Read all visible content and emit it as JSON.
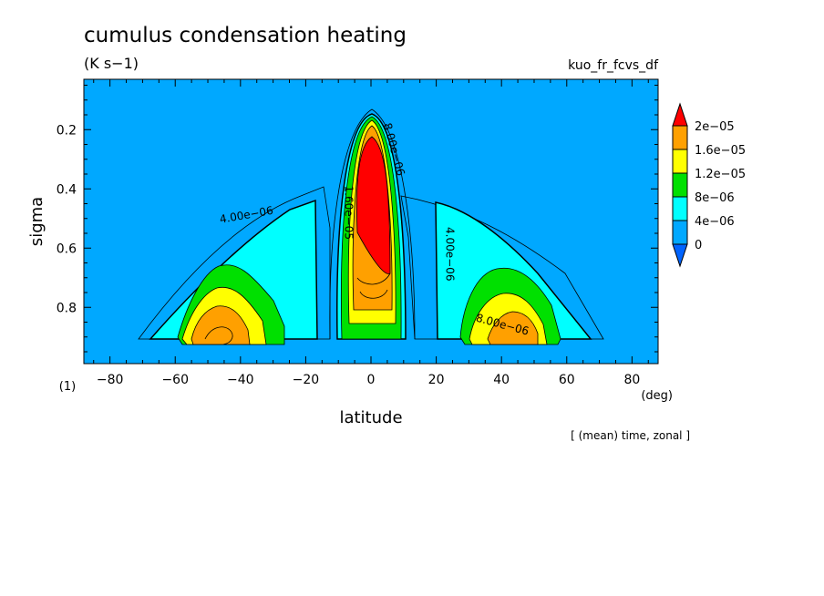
{
  "chart_data": {
    "type": "heatmap",
    "title": "cumulus condensation heating",
    "units": "(K s−1)",
    "variable": "kuo_fr_fcvs_df",
    "xlabel": "latitude",
    "xunit": "(deg)",
    "ylabel": "sigma",
    "yunit": "(1)",
    "note": "[ (mean) time, zonal ]",
    "xlim": [
      -88,
      88
    ],
    "ylim": [
      0.03,
      0.99
    ],
    "y_inverted": true,
    "xticks": [
      -80,
      -60,
      -40,
      -20,
      0,
      20,
      40,
      60,
      80
    ],
    "xtick_labels": [
      "−80",
      "−60",
      "−40",
      "−20",
      "0",
      "20",
      "40",
      "60",
      "80"
    ],
    "yticks": [
      0.2,
      0.4,
      0.6,
      0.8
    ],
    "ytick_labels": [
      "0.2",
      "0.4",
      "0.6",
      "0.8"
    ],
    "colorbar": {
      "levels": [
        0,
        4e-06,
        8e-06,
        1.2e-05,
        1.6e-05,
        2e-05
      ],
      "labels": [
        "0",
        "4e−06",
        "8e−06",
        "1.2e−05",
        "1.6e−05",
        "2e−05"
      ],
      "colors": [
        "#00a8ff",
        "#00ffff",
        "#00e000",
        "#ffff00",
        "#ffa000",
        "#ff0000"
      ],
      "under_color": "#0064ff",
      "over_color": "#ff0000"
    },
    "contour_labels": [
      {
        "text": "4.00e−06",
        "lat": -38,
        "sigma": 0.5,
        "rotate": -10
      },
      {
        "text": "4.00e−06",
        "lat": 23,
        "sigma": 0.62,
        "rotate": 90
      },
      {
        "text": "8.00e−06",
        "lat": 40,
        "sigma": 0.87,
        "rotate": 15
      },
      {
        "text": "1.60e−05",
        "lat": -8,
        "sigma": 0.48,
        "rotate": 90
      },
      {
        "text": "8.00e−06",
        "lat": 6,
        "sigma": 0.27,
        "rotate": 75
      }
    ]
  }
}
